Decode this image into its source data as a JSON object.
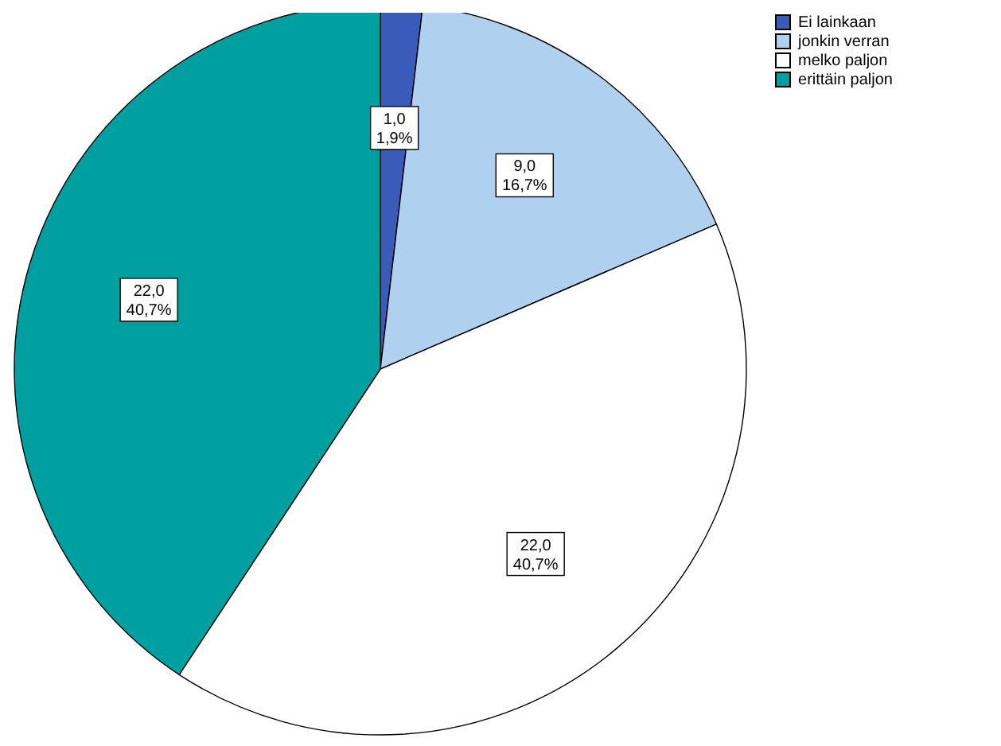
{
  "chart_data": {
    "type": "pie",
    "categories": [
      "Ei lainkaan",
      "jonkin verran",
      "melko paljon",
      "erittäin paljon"
    ],
    "values": [
      1,
      9,
      22,
      22
    ],
    "colors": [
      "#3a5cb8",
      "#b0d0f0",
      "#ffffff",
      "#00a0a0"
    ],
    "value_labels": [
      "1,0\n1,9%",
      "9,0\n16,7%",
      "22,0\n40,7%",
      "22,0\n40,7%"
    ],
    "legend": "top right"
  }
}
